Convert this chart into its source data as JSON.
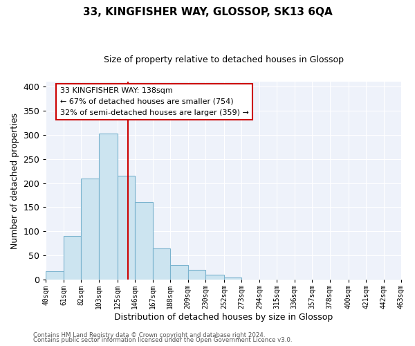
{
  "title": "33, KINGFISHER WAY, GLOSSOP, SK13 6QA",
  "subtitle": "Size of property relative to detached houses in Glossop",
  "xlabel": "Distribution of detached houses by size in Glossop",
  "ylabel": "Number of detached properties",
  "bar_edges": [
    40,
    61,
    82,
    103,
    125,
    146,
    167,
    188,
    209,
    230,
    252,
    273,
    294,
    315,
    336,
    357,
    378,
    400,
    421,
    442,
    463
  ],
  "bar_heights": [
    17,
    90,
    210,
    303,
    215,
    160,
    65,
    31,
    20,
    10,
    4,
    1,
    0,
    0,
    0,
    1,
    0,
    0,
    0,
    1
  ],
  "tick_labels": [
    "40sqm",
    "61sqm",
    "82sqm",
    "103sqm",
    "125sqm",
    "146sqm",
    "167sqm",
    "188sqm",
    "209sqm",
    "230sqm",
    "252sqm",
    "273sqm",
    "294sqm",
    "315sqm",
    "336sqm",
    "357sqm",
    "378sqm",
    "400sqm",
    "421sqm",
    "442sqm",
    "463sqm"
  ],
  "bar_color": "#cce4f0",
  "bar_edge_color": "#7ab3ce",
  "vline_x": 138,
  "vline_color": "#cc0000",
  "ylim": [
    0,
    410
  ],
  "yticks": [
    0,
    50,
    100,
    150,
    200,
    250,
    300,
    350,
    400
  ],
  "annotation_title": "33 KINGFISHER WAY: 138sqm",
  "annotation_line1": "← 67% of detached houses are smaller (754)",
  "annotation_line2": "32% of semi-detached houses are larger (359) →",
  "annotation_box_color": "#ffffff",
  "annotation_box_edge": "#cc0000",
  "footer1": "Contains HM Land Registry data © Crown copyright and database right 2024.",
  "footer2": "Contains public sector information licensed under the Open Government Licence v3.0.",
  "background_color": "#ffffff",
  "plot_bg_color": "#eef2fa",
  "grid_color": "#ffffff"
}
